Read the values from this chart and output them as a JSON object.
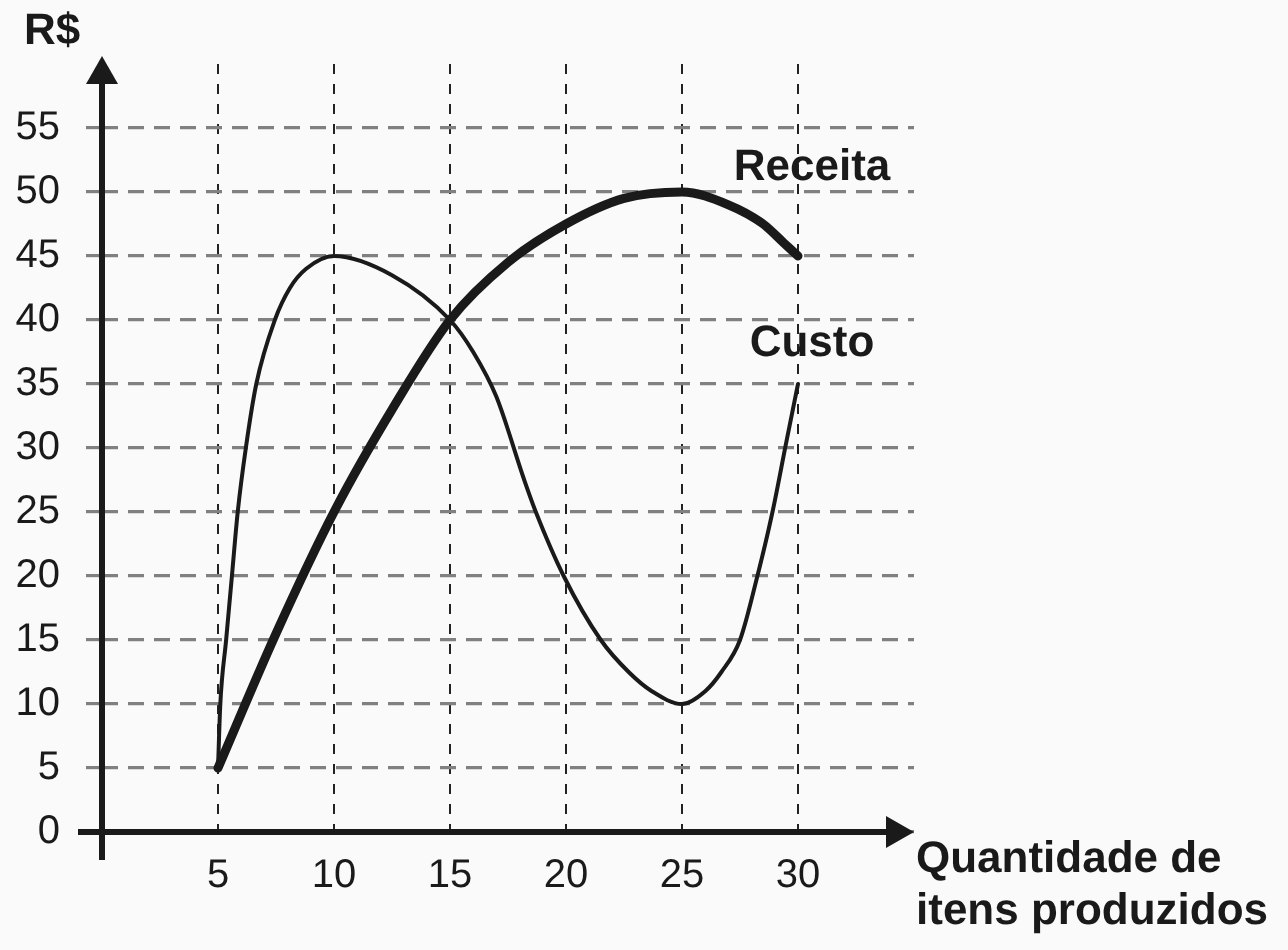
{
  "chart_data": {
    "type": "line",
    "ylabel": "R$",
    "xlabel": "Quantidade de itens produzidos",
    "xlim": [
      0,
      35
    ],
    "ylim": [
      0,
      60
    ],
    "xticks": [
      5,
      10,
      15,
      20,
      25,
      30
    ],
    "yticks": [
      0,
      5,
      10,
      15,
      20,
      25,
      30,
      35,
      40,
      45,
      50,
      55
    ],
    "grid": true,
    "legend": false,
    "marker": "none",
    "line_style": "solid",
    "series": [
      {
        "name": "Receita",
        "color": "#1a1a1a",
        "x": [
          5,
          7.5,
          10,
          12.5,
          15,
          17.5,
          20,
          22.5,
          25,
          27,
          28.5,
          29.4,
          30
        ],
        "values": [
          5,
          15.5,
          25,
          33,
          40,
          44.5,
          47.5,
          49.5,
          50,
          49,
          47.5,
          46,
          45
        ]
      },
      {
        "name": "Custo",
        "color": "#1a1a1a",
        "x": [
          5,
          5.1,
          5.35,
          5.6,
          5.85,
          6.2,
          6.65,
          7.45,
          8.1,
          8.8,
          10,
          12.5,
          15,
          16,
          17,
          18.2,
          18.7,
          19.9,
          21.5,
          22.7,
          23.7,
          25,
          26,
          26.7,
          27.5,
          28.25,
          28.9,
          29.5,
          30
        ],
        "values": [
          5,
          10,
          15,
          20,
          25,
          30,
          35,
          40,
          42.5,
          44,
          45,
          43.5,
          40,
          37.5,
          34,
          27.5,
          25,
          20,
          15,
          12.5,
          11,
          10,
          11,
          12.5,
          15,
          20,
          25,
          30.5,
          35
        ]
      }
    ]
  }
}
